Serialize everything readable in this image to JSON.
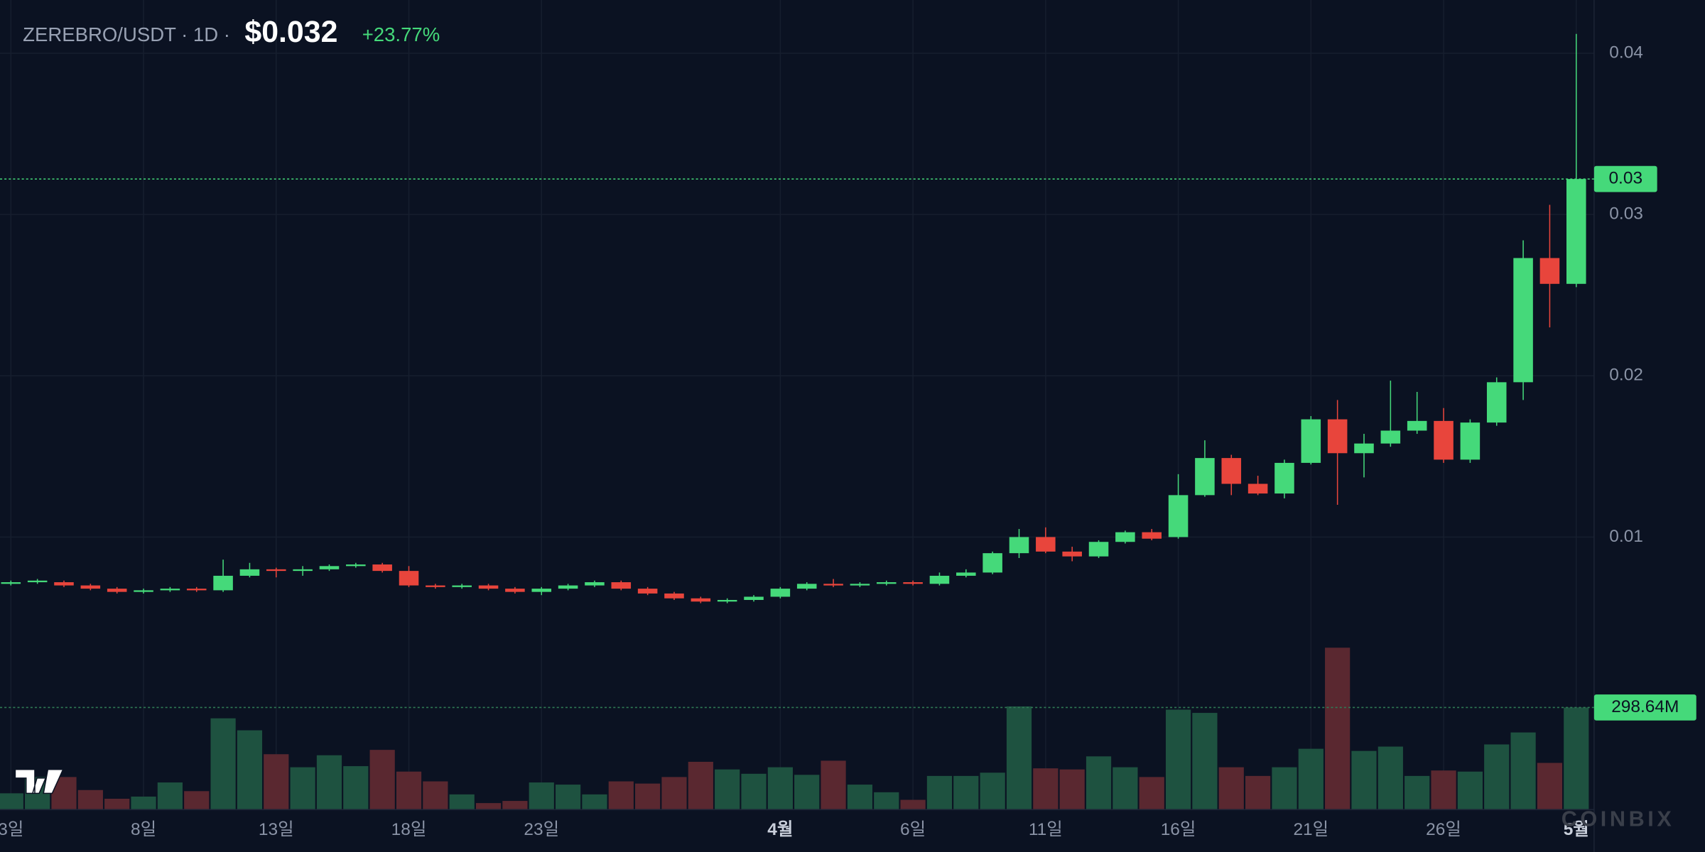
{
  "header": {
    "title": "ZEREBRO/USDT · 1D ·",
    "price": "$0.032",
    "change": "+23.77%"
  },
  "watermark": "COINBIX",
  "chart_data": {
    "type": "candlestick",
    "categories": [
      "3일",
      null,
      null,
      null,
      null,
      "8일",
      null,
      null,
      null,
      null,
      "13일",
      null,
      null,
      null,
      null,
      "18일",
      null,
      null,
      null,
      null,
      "23일",
      null,
      null,
      null,
      null,
      null,
      null,
      null,
      null,
      "4월",
      null,
      null,
      null,
      null,
      "6일",
      null,
      null,
      null,
      null,
      "11일",
      null,
      null,
      null,
      null,
      "16일",
      null,
      null,
      null,
      null,
      "21일",
      null,
      null,
      null,
      null,
      "26일",
      null,
      null,
      null,
      null,
      "5월"
    ],
    "open": [
      0.0071,
      0.0072,
      0.0072,
      0.007,
      0.0068,
      0.0066,
      0.0067,
      0.0068,
      0.0067,
      0.0076,
      0.008,
      0.0079,
      0.008,
      0.0082,
      0.0083,
      0.0079,
      0.007,
      0.0069,
      0.007,
      0.0068,
      0.0066,
      0.0068,
      0.007,
      0.0072,
      0.0068,
      0.0065,
      0.0062,
      0.006,
      0.0061,
      0.0063,
      0.0068,
      0.0071,
      0.007,
      0.0071,
      0.0072,
      0.0071,
      0.0076,
      0.0078,
      0.009,
      0.01,
      0.0091,
      0.0088,
      0.0097,
      0.0103,
      0.01,
      0.0126,
      0.0149,
      0.0133,
      0.0127,
      0.0146,
      0.0173,
      0.0152,
      0.0158,
      0.0166,
      0.0172,
      0.0148,
      0.0171,
      0.0196,
      0.0273,
      0.0257
    ],
    "high": [
      0.0073,
      0.0074,
      0.0073,
      0.0071,
      0.0069,
      0.0068,
      0.0069,
      0.0069,
      0.0086,
      0.0084,
      0.0081,
      0.0082,
      0.0083,
      0.0084,
      0.0084,
      0.0082,
      0.0071,
      0.0071,
      0.0071,
      0.0069,
      0.0069,
      0.0071,
      0.0073,
      0.0073,
      0.0069,
      0.0066,
      0.0063,
      0.0062,
      0.0064,
      0.0069,
      0.0072,
      0.0074,
      0.0072,
      0.0073,
      0.0073,
      0.0078,
      0.008,
      0.0091,
      0.0105,
      0.0106,
      0.0094,
      0.0098,
      0.0104,
      0.0105,
      0.0139,
      0.016,
      0.0151,
      0.0138,
      0.0148,
      0.0175,
      0.0185,
      0.0164,
      0.0197,
      0.019,
      0.018,
      0.0173,
      0.0199,
      0.0284,
      0.0306,
      0.0412
    ],
    "low": [
      0.007,
      0.0071,
      0.0069,
      0.0067,
      0.0065,
      0.0065,
      0.0066,
      0.0066,
      0.0066,
      0.0075,
      0.0075,
      0.0076,
      0.0079,
      0.0081,
      0.0078,
      0.0069,
      0.0068,
      0.0068,
      0.0067,
      0.0065,
      0.0064,
      0.0067,
      0.0069,
      0.0067,
      0.0064,
      0.0061,
      0.0059,
      0.0059,
      0.006,
      0.0062,
      0.0067,
      0.0069,
      0.0069,
      0.007,
      0.007,
      0.007,
      0.0075,
      0.0077,
      0.0087,
      0.009,
      0.0085,
      0.0087,
      0.0096,
      0.0098,
      0.0099,
      0.0125,
      0.0126,
      0.0126,
      0.0124,
      0.0145,
      0.012,
      0.0137,
      0.0156,
      0.0164,
      0.0146,
      0.0146,
      0.0169,
      0.0185,
      0.023,
      0.0255
    ],
    "close": [
      0.0072,
      0.0073,
      0.007,
      0.0068,
      0.0066,
      0.0067,
      0.0068,
      0.0067,
      0.0076,
      0.008,
      0.0079,
      0.008,
      0.0082,
      0.0083,
      0.0079,
      0.007,
      0.0069,
      0.007,
      0.0068,
      0.0066,
      0.0068,
      0.007,
      0.0072,
      0.0068,
      0.0065,
      0.0062,
      0.006,
      0.0061,
      0.0063,
      0.0068,
      0.0071,
      0.007,
      0.0071,
      0.0072,
      0.0071,
      0.0076,
      0.0078,
      0.009,
      0.01,
      0.0091,
      0.0088,
      0.0097,
      0.0103,
      0.0099,
      0.0126,
      0.0149,
      0.0133,
      0.0127,
      0.0146,
      0.0173,
      0.0152,
      0.0158,
      0.0166,
      0.0172,
      0.0148,
      0.0171,
      0.0196,
      0.0273,
      0.0257,
      0.0322
    ],
    "volume": [
      47700000,
      95300000,
      95300000,
      57200000,
      31800000,
      38100000,
      79400000,
      54000000,
      266900000,
      231900000,
      162000000,
      123900000,
      158900000,
      127100000,
      174700000,
      111200000,
      82600000,
      44500000,
      19100000,
      25400000,
      79400000,
      73100000,
      44500000,
      82600000,
      76200000,
      95300000,
      139800000,
      117500000,
      104800000,
      123900000,
      101700000,
      143000000,
      73100000,
      50800000,
      28600000,
      98500000,
      98500000,
      108000000,
      301800000,
      120700000,
      117500000,
      155700000,
      123900000,
      95300000,
      292300000,
      282800000,
      123900000,
      98500000,
      123900000,
      177900000,
      473400000,
      171600000,
      184300000,
      98500000,
      114400000,
      111200000,
      190600000,
      225600000,
      136600000,
      298640000
    ],
    "ylim": [
      -0.0069,
      0.0433
    ],
    "yticks": [
      0.01,
      0.02,
      0.03,
      0.04
    ],
    "volume_ylim": [
      0,
      2367000000
    ],
    "last_price": {
      "value": 0.0322,
      "label": "0.03"
    },
    "last_volume": {
      "value": 298640000,
      "label": "298.64M"
    },
    "grid": true,
    "up_color": "#45d97a",
    "down_color": "#e8453c",
    "volume_up_color": "#1e5240",
    "volume_down_color": "#5a2830"
  }
}
